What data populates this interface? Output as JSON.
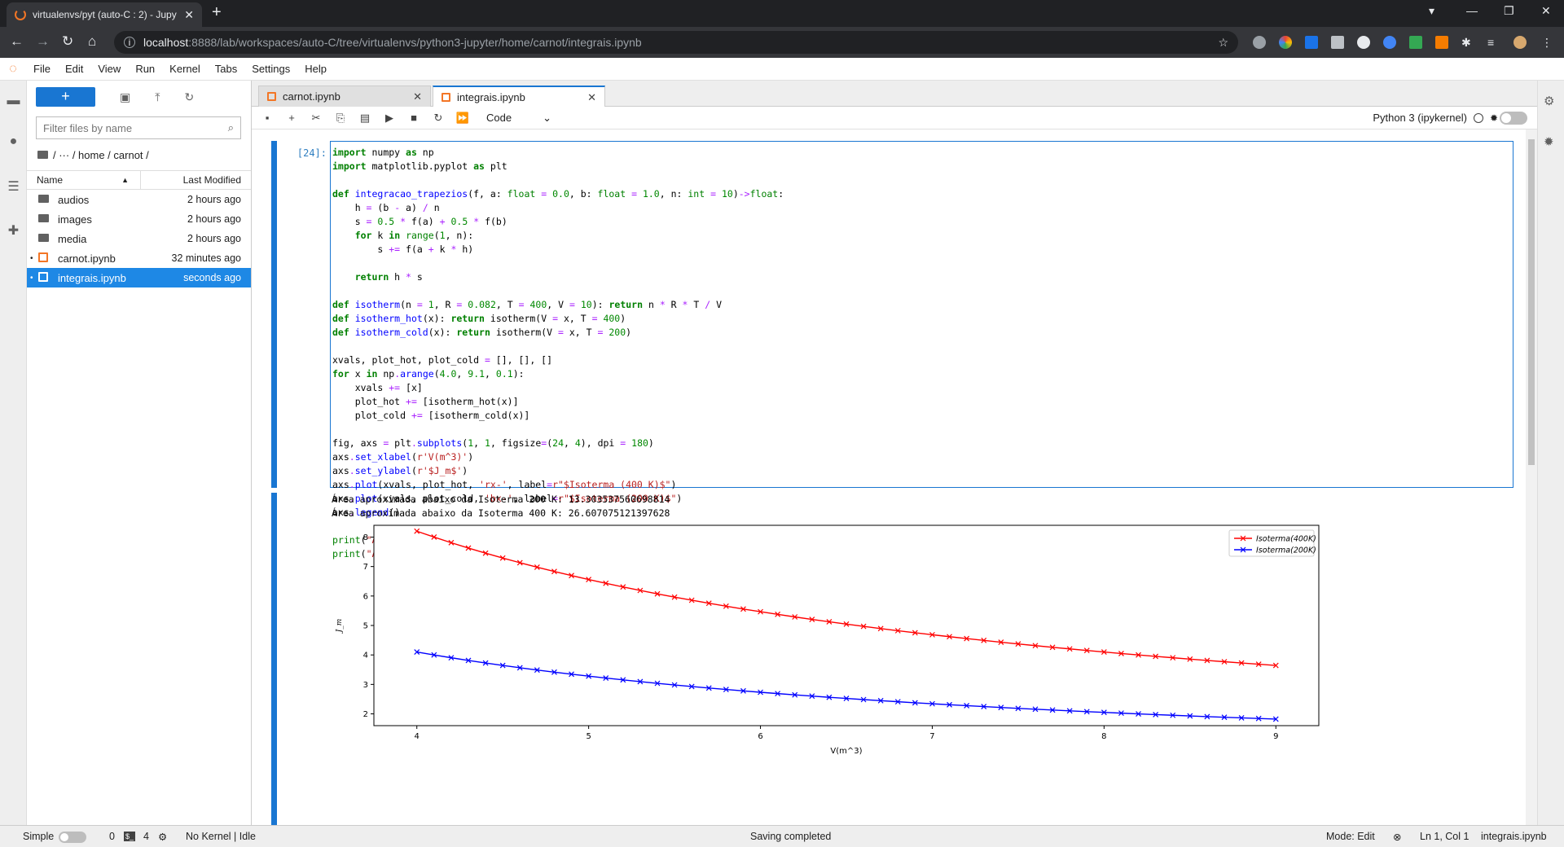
{
  "browser": {
    "tab_title": "virtualenvs/pyt (auto-C : 2) - Jupy",
    "tab_close": "✕",
    "new_tab": "+",
    "url_host": "localhost",
    "url_rest": ":8888/lab/workspaces/auto-C/tree/virtualenvs/python3-jupyter/home/carnot/integrais.ipynb"
  },
  "menu": [
    "File",
    "Edit",
    "View",
    "Run",
    "Kernel",
    "Tabs",
    "Settings",
    "Help"
  ],
  "filebrowser": {
    "new_label": "+",
    "filter_placeholder": "Filter files by name",
    "breadcrumb": "/  ···  / home / carnot /",
    "col_name": "Name",
    "col_modified": "Last Modified",
    "files": [
      {
        "name": "audios",
        "modified": "2 hours ago",
        "type": "folder"
      },
      {
        "name": "images",
        "modified": "2 hours ago",
        "type": "folder"
      },
      {
        "name": "media",
        "modified": "2 hours ago",
        "type": "folder"
      },
      {
        "name": "carnot.ipynb",
        "modified": "32 minutes ago",
        "type": "notebook"
      },
      {
        "name": "integrais.ipynb",
        "modified": "seconds ago",
        "type": "notebook",
        "selected": true
      }
    ]
  },
  "doc_tabs": [
    {
      "label": "carnot.ipynb",
      "active": false
    },
    {
      "label": "integrais.ipynb",
      "active": true
    }
  ],
  "toolbar": {
    "cell_type": "Code",
    "kernel_name": "Python 3 (ipykernel)"
  },
  "cell": {
    "prompt": "[24]:",
    "output_lines": [
      "Área aproximada abaixo da Isoterma 200 K: 13.303537560698814",
      "Área aproximada abaixo da Isoterma 400 K: 26.607075121397628"
    ]
  },
  "chart_data": {
    "type": "line",
    "xlabel": "V(m^3)",
    "ylabel": "J_m",
    "xlim": [
      3.75,
      9.25
    ],
    "ylim": [
      1.6,
      8.4
    ],
    "xticks": [
      4,
      5,
      6,
      7,
      8,
      9
    ],
    "yticks": [
      2,
      3,
      4,
      5,
      6,
      7,
      8
    ],
    "legend": "top-right",
    "grid": false,
    "series": [
      {
        "name": "Isoterma(400K)",
        "color": "#ff0000",
        "marker": "x",
        "n": 32.8,
        "x0": 4.0,
        "dx": 0.1,
        "count": 51
      },
      {
        "name": "Isoterma(200K)",
        "color": "#0000ff",
        "marker": "x",
        "n": 16.4,
        "x0": 4.0,
        "dx": 0.1,
        "count": 51
      }
    ]
  },
  "status": {
    "mode_label": "Simple",
    "terminals": "0",
    "kernels": "4",
    "kernel_status": "No Kernel | Idle",
    "center": "Saving completed",
    "edit_mode": "Mode: Edit",
    "cursor": "Ln 1, Col 1",
    "filename": "integrais.ipynb"
  }
}
